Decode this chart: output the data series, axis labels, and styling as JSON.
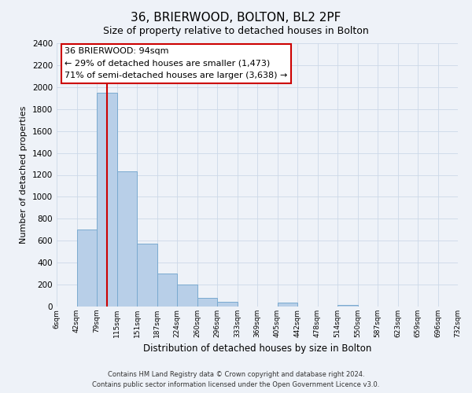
{
  "title": "36, BRIERWOOD, BOLTON, BL2 2PF",
  "subtitle": "Size of property relative to detached houses in Bolton",
  "xlabel": "Distribution of detached houses by size in Bolton",
  "ylabel": "Number of detached properties",
  "bar_color": "#b8cfe8",
  "bar_edge_color": "#7aaad0",
  "bin_labels": [
    "6sqm",
    "42sqm",
    "79sqm",
    "115sqm",
    "151sqm",
    "187sqm",
    "224sqm",
    "260sqm",
    "296sqm",
    "333sqm",
    "369sqm",
    "405sqm",
    "442sqm",
    "478sqm",
    "514sqm",
    "550sqm",
    "587sqm",
    "623sqm",
    "659sqm",
    "696sqm",
    "732sqm"
  ],
  "bar_values": [
    0,
    700,
    1950,
    1230,
    575,
    300,
    200,
    80,
    45,
    0,
    0,
    35,
    0,
    0,
    15,
    0,
    0,
    0,
    0,
    0
  ],
  "ylim": [
    0,
    2400
  ],
  "yticks": [
    0,
    200,
    400,
    600,
    800,
    1000,
    1200,
    1400,
    1600,
    1800,
    2000,
    2200,
    2400
  ],
  "property_line_x": 2.5,
  "property_label": "36 BRIERWOOD: 94sqm",
  "annotation_line1": "← 29% of detached houses are smaller (1,473)",
  "annotation_line2": "71% of semi-detached houses are larger (3,638) →",
  "annotation_box_color": "#ffffff",
  "annotation_box_edge_color": "#cc0000",
  "property_line_color": "#cc0000",
  "grid_color": "#ccd8e8",
  "background_color": "#eef2f8",
  "footer_line1": "Contains HM Land Registry data © Crown copyright and database right 2024.",
  "footer_line2": "Contains public sector information licensed under the Open Government Licence v3.0."
}
